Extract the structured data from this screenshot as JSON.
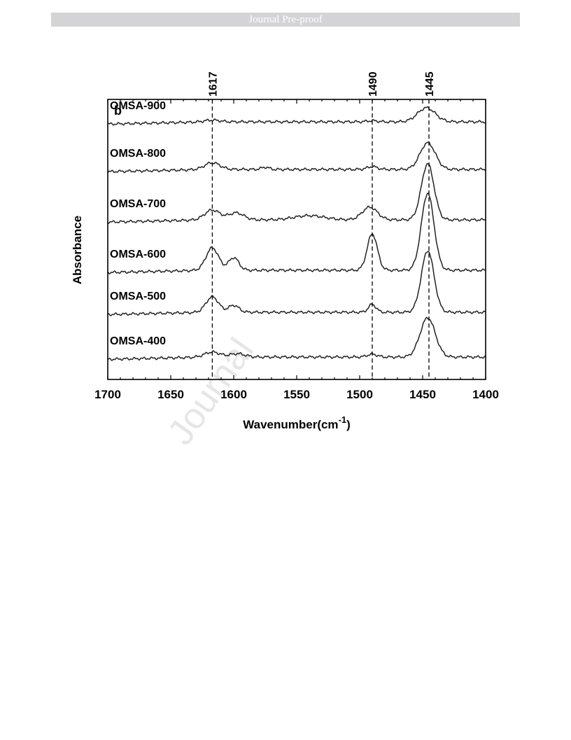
{
  "header": {
    "banner_text": "Journal Pre-proof"
  },
  "watermark_text": "Journal",
  "chart_data": {
    "type": "line",
    "panel_label": "b",
    "xlabel": "Wavenumber(cm",
    "xlabel_sup": "-1",
    "xlabel_close": ")",
    "ylabel": "Absorbance",
    "xlim": [
      1700,
      1400
    ],
    "x_reversed": true,
    "xticks": [
      1700,
      1650,
      1600,
      1550,
      1500,
      1450,
      1400
    ],
    "grid": false,
    "legend": "none (series labelled directly on curves)",
    "reference_lines": [
      {
        "x": 1617,
        "label": "1617",
        "style": "dashed"
      },
      {
        "x": 1490,
        "label": "1490",
        "style": "dashed"
      },
      {
        "x": 1445,
        "label": "1445",
        "style": "dashed"
      }
    ],
    "series": [
      {
        "name": "OMSA-900",
        "baseline": 0.92,
        "features": [
          {
            "x": 1617,
            "height": 0.006,
            "width": 6
          },
          {
            "x": 1490,
            "height": 0.004,
            "width": 4
          },
          {
            "x": 1447,
            "height": 0.05,
            "width": 7
          }
        ]
      },
      {
        "name": "OMSA-800",
        "baseline": 0.75,
        "features": [
          {
            "x": 1617,
            "height": 0.024,
            "width": 6
          },
          {
            "x": 1575,
            "height": 0.008,
            "width": 3
          },
          {
            "x": 1490,
            "height": 0.01,
            "width": 4
          },
          {
            "x": 1446,
            "height": 0.095,
            "width": 6
          }
        ]
      },
      {
        "name": "OMSA-700",
        "baseline": 0.57,
        "features": [
          {
            "x": 1617,
            "height": 0.035,
            "width": 6
          },
          {
            "x": 1598,
            "height": 0.025,
            "width": 6
          },
          {
            "x": 1540,
            "height": 0.015,
            "width": 12
          },
          {
            "x": 1492,
            "height": 0.045,
            "width": 6
          },
          {
            "x": 1446,
            "height": 0.2,
            "width": 5
          }
        ]
      },
      {
        "name": "OMSA-600",
        "baseline": 0.39,
        "features": [
          {
            "x": 1617,
            "height": 0.08,
            "width": 5
          },
          {
            "x": 1600,
            "height": 0.045,
            "width": 4
          },
          {
            "x": 1490,
            "height": 0.13,
            "width": 4
          },
          {
            "x": 1446,
            "height": 0.275,
            "width": 5
          }
        ]
      },
      {
        "name": "OMSA-500",
        "baseline": 0.24,
        "features": [
          {
            "x": 1617,
            "height": 0.055,
            "width": 5
          },
          {
            "x": 1600,
            "height": 0.025,
            "width": 4
          },
          {
            "x": 1490,
            "height": 0.028,
            "width": 3
          },
          {
            "x": 1446,
            "height": 0.22,
            "width": 5
          }
        ]
      },
      {
        "name": "OMSA-400",
        "baseline": 0.08,
        "features": [
          {
            "x": 1617,
            "height": 0.018,
            "width": 6
          },
          {
            "x": 1597,
            "height": 0.012,
            "width": 6
          },
          {
            "x": 1490,
            "height": 0.01,
            "width": 4
          },
          {
            "x": 1446,
            "height": 0.14,
            "width": 6
          }
        ]
      }
    ]
  }
}
